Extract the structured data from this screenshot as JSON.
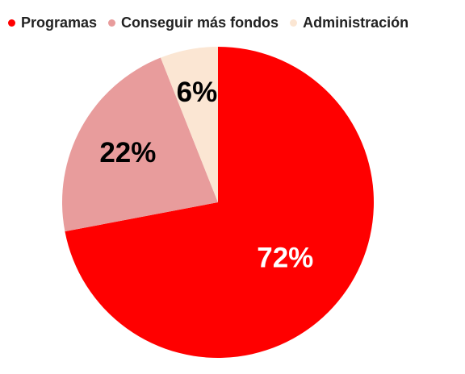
{
  "chart_data": {
    "type": "pie",
    "categories": [
      "Programas",
      "Conseguir más fondos",
      "Administración"
    ],
    "values": [
      72,
      22,
      6
    ],
    "data_labels": [
      "72%",
      "22%",
      "6%"
    ],
    "colors": [
      "#ff0000",
      "#e89c9c",
      "#fbe6d3"
    ],
    "label_colors": [
      "#ffffff",
      "#000000",
      "#000000"
    ],
    "legend_position": "top-left"
  }
}
